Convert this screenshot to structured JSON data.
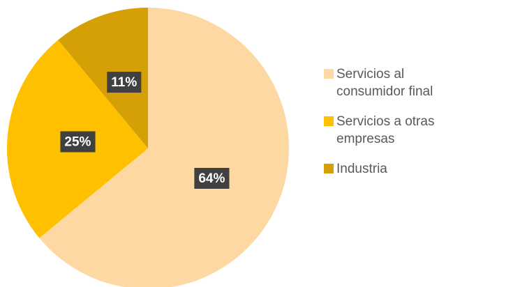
{
  "chart_data": {
    "type": "pie",
    "categories": [
      "Servicios al consumidor final",
      "Servicios a otras empresas",
      "Industria"
    ],
    "values": [
      64,
      25,
      11
    ],
    "value_labels": [
      "64%",
      "25%",
      "11%"
    ],
    "colors": [
      "#FDD8A2",
      "#FFC000",
      "#D4A005"
    ],
    "legend": "right"
  }
}
